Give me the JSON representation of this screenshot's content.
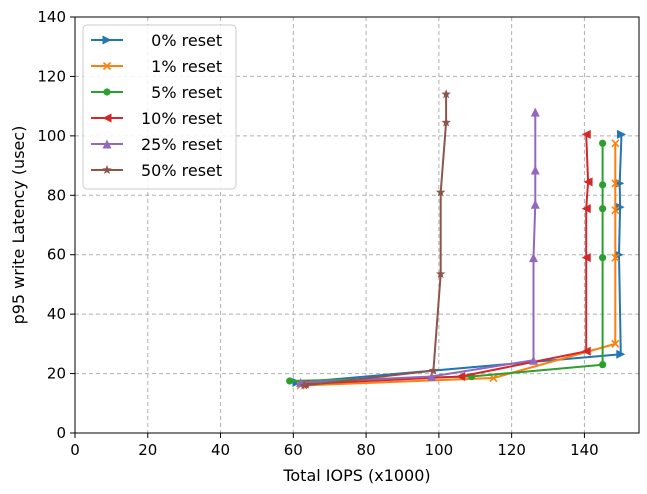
{
  "chart_data": {
    "type": "line",
    "xlabel": "Total IOPS (x1000)",
    "ylabel": "p95 write Latency (usec)",
    "xlim": [
      0,
      155
    ],
    "ylim": [
      0,
      140
    ],
    "xticks": [
      0,
      20,
      40,
      60,
      80,
      100,
      120,
      140
    ],
    "yticks": [
      0,
      20,
      40,
      60,
      80,
      100,
      120,
      140
    ],
    "grid": true,
    "grid_style": "dashed",
    "legend_position": "top-left",
    "series": [
      {
        "name": "  0% reset",
        "color": "#1f77b4",
        "marker": "triangle-right",
        "points": [
          [
            61,
            17
          ],
          [
            150,
            26.5
          ],
          [
            149.5,
            60
          ],
          [
            149.8,
            76
          ],
          [
            149.7,
            84
          ],
          [
            150.2,
            100.5
          ]
        ]
      },
      {
        "name": "  1% reset",
        "color": "#ff7f0e",
        "marker": "x",
        "points": [
          [
            62,
            16
          ],
          [
            115,
            18.5
          ],
          [
            148.5,
            30
          ],
          [
            148.5,
            59
          ],
          [
            148.5,
            75
          ],
          [
            148.5,
            84
          ],
          [
            148.5,
            97.5
          ]
        ]
      },
      {
        "name": "  5% reset",
        "color": "#2ca02c",
        "marker": "circle",
        "points": [
          [
            59,
            17.5
          ],
          [
            109,
            19
          ],
          [
            145,
            23
          ],
          [
            145,
            59
          ],
          [
            145,
            75.5
          ],
          [
            145,
            83.5
          ],
          [
            145,
            97.5
          ]
        ]
      },
      {
        "name": "10% reset",
        "color": "#d62728",
        "marker": "triangle-left",
        "points": [
          [
            63,
            16.5
          ],
          [
            106,
            19
          ],
          [
            140.5,
            27.5
          ],
          [
            140.5,
            59
          ],
          [
            140.5,
            75.5
          ],
          [
            141,
            84.5
          ],
          [
            140.5,
            100.5
          ]
        ]
      },
      {
        "name": "25% reset",
        "color": "#9467bd",
        "marker": "triangle-up",
        "points": [
          [
            62,
            17
          ],
          [
            98,
            19
          ],
          [
            126,
            24.5
          ],
          [
            126,
            59
          ],
          [
            126.5,
            77
          ],
          [
            126.5,
            88.5
          ],
          [
            126.5,
            108
          ]
        ]
      },
      {
        "name": "50% reset",
        "color": "#8c564b",
        "marker": "star",
        "points": [
          [
            63,
            16
          ],
          [
            98.5,
            21
          ],
          [
            100.5,
            53.5
          ],
          [
            100.5,
            81
          ],
          [
            102,
            104.5
          ],
          [
            102,
            114
          ]
        ]
      }
    ]
  }
}
